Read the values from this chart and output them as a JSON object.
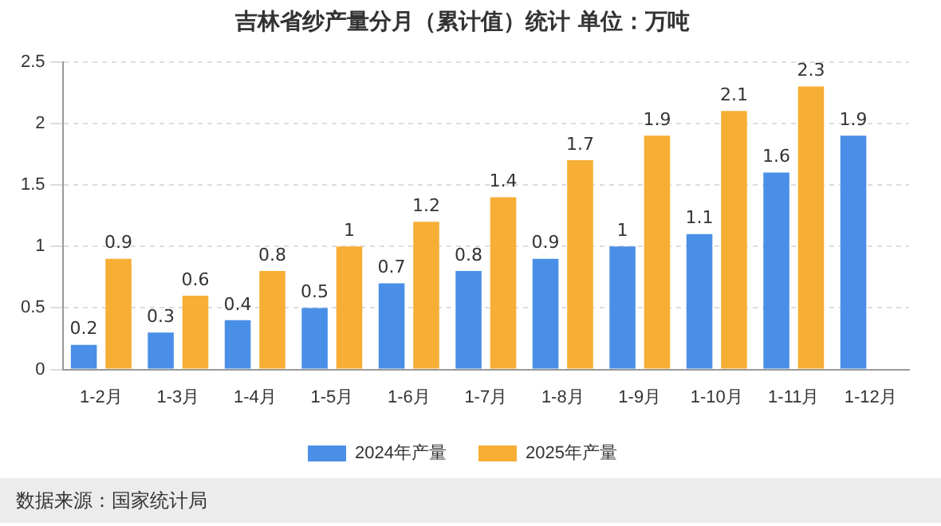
{
  "chart_data": {
    "type": "bar",
    "title": "吉林省纱产量分月（累计值）统计 单位：万吨",
    "categories": [
      "1-2月",
      "1-3月",
      "1-4月",
      "1-5月",
      "1-6月",
      "1-7月",
      "1-8月",
      "1-9月",
      "1-10月",
      "1-11月",
      "1-12月"
    ],
    "series": [
      {
        "name": "2024年产量",
        "color": "#4a8fe7",
        "values": [
          0.2,
          0.3,
          0.4,
          0.5,
          0.7,
          0.8,
          0.9,
          1,
          1.1,
          1.6,
          1.9
        ]
      },
      {
        "name": "2025年产量",
        "color": "#f7ae35",
        "values": [
          0.9,
          0.6,
          0.8,
          1,
          1.2,
          1.4,
          1.7,
          1.9,
          2.1,
          2.3,
          null
        ]
      }
    ],
    "ylim": [
      0,
      2.5
    ],
    "yticks": [
      0,
      0.5,
      1,
      1.5,
      2,
      2.5
    ],
    "grid": "y",
    "legend": "bottom",
    "data_labels": true,
    "annotations": [
      "数据来源：国家统计局"
    ]
  }
}
